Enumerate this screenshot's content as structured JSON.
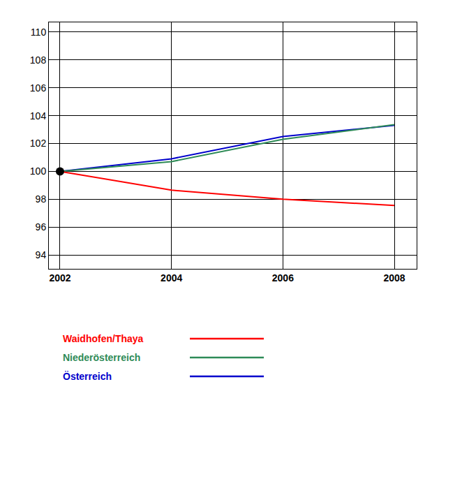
{
  "chart_data": {
    "type": "line",
    "x": [
      2002,
      2004,
      2006,
      2008
    ],
    "series": [
      {
        "name": "Waidhofen/Thaya",
        "color": "#ff0000",
        "values": [
          100,
          98.65,
          98.0,
          97.55
        ]
      },
      {
        "name": "Niederösterreich",
        "color": "#2e8b57",
        "values": [
          100,
          100.7,
          102.3,
          103.35
        ]
      },
      {
        "name": "Österreich",
        "color": "#0000cc",
        "values": [
          100,
          100.9,
          102.5,
          103.3
        ]
      }
    ],
    "base_point": {
      "x": 2002,
      "y": 100
    },
    "xlim": [
      2001.8,
      2008.4
    ],
    "ylim": [
      93,
      110.7
    ],
    "xticks": [
      2002,
      2004,
      2006,
      2008
    ],
    "yticks": [
      94,
      96,
      98,
      100,
      102,
      104,
      106,
      108,
      110
    ],
    "grid": true,
    "legend": "bottom"
  }
}
